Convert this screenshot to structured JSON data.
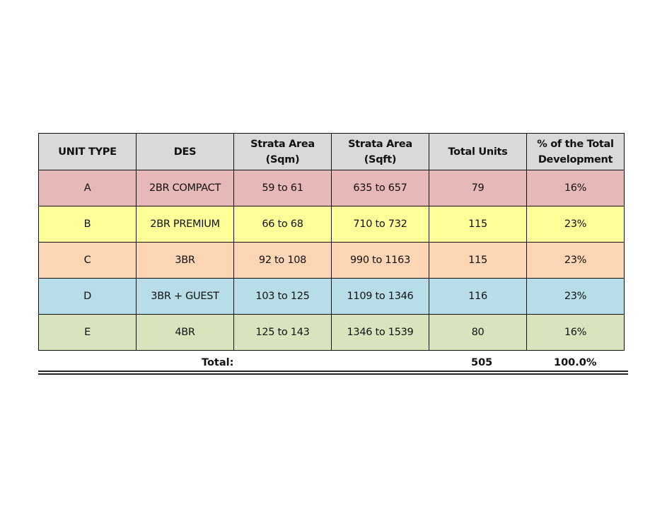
{
  "headers": [
    "UNIT TYPE",
    "DES",
    "Strata Area (Sqm)",
    "Strata Area (Sqft)",
    "Total Units",
    "% of the Total Development"
  ],
  "rows": [
    {
      "cells": [
        "A",
        "2BR COMPACT",
        "59 to 61",
        "635 to 657",
        "79",
        "16%"
      ],
      "color": "#e6b8b7"
    },
    {
      "cells": [
        "B",
        "2BR PREMIUM",
        "66 to 68",
        "710 to 732",
        "115",
        "23%"
      ],
      "color": "#ffff99"
    },
    {
      "cells": [
        "C",
        "3BR",
        "92 to 108",
        "990 to 1163",
        "115",
        "23%"
      ],
      "color": "#fcd5b4"
    },
    {
      "cells": [
        "D",
        "3BR + GUEST",
        "103 to 125",
        "1109 to 1346",
        "116",
        "23%"
      ],
      "color": "#b7dee8"
    },
    {
      "cells": [
        "E",
        "4BR",
        "125 to 143",
        "1346 to 1539",
        "80",
        "16%"
      ],
      "color": "#d8e4bc"
    }
  ],
  "header_color": "#d9d9d9",
  "total": {
    "label": "Total:",
    "units": "505",
    "percent": "100.0%"
  }
}
